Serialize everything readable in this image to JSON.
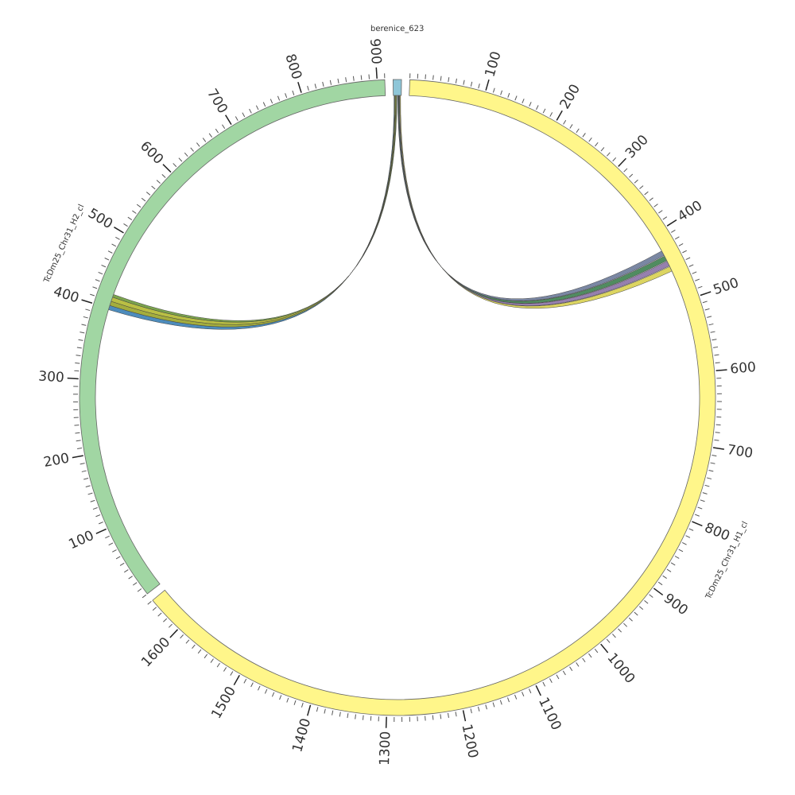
{
  "chart_data": {
    "type": "circos",
    "segments": [
      {
        "name": "berenice_623",
        "length": 11,
        "color": "#8ec6d8",
        "ticks": []
      },
      {
        "name": "TcDm25_Chr31_H1_cl",
        "length": 1650,
        "color": "#fff68a",
        "ticks": [
          100,
          200,
          300,
          400,
          500,
          600,
          700,
          800,
          900,
          1000,
          1100,
          1200,
          1300,
          1400,
          1500,
          1600
        ]
      },
      {
        "name": "TcDm25_Chr31_H2_cl",
        "length": 910,
        "color": "#a1d6a3",
        "ticks": [
          100,
          200,
          300,
          400,
          500,
          600,
          700,
          800,
          900
        ]
      }
    ],
    "minor_tick_step": 10,
    "links": [
      {
        "source": 0,
        "source_start": 6,
        "source_end": 7,
        "target": 1,
        "target_start": 425,
        "target_end": 432,
        "color": "#6b7a99"
      },
      {
        "source": 0,
        "source_start": 7,
        "source_end": 8,
        "target": 1,
        "target_start": 433,
        "target_end": 440,
        "color": "#3d7f4f"
      },
      {
        "source": 0,
        "source_start": 8,
        "source_end": 9,
        "target": 1,
        "target_start": 441,
        "target_end": 448,
        "color": "#8b72a6"
      },
      {
        "source": 0,
        "source_start": 9,
        "source_end": 10,
        "target": 1,
        "target_start": 449,
        "target_end": 456,
        "color": "#d8d050"
      },
      {
        "source": 0,
        "source_start": 1,
        "source_end": 2,
        "target": 2,
        "target_start": 398,
        "target_end": 404,
        "color": "#3a80b5"
      },
      {
        "source": 0,
        "source_start": 2,
        "source_end": 3,
        "target": 2,
        "target_start": 404,
        "target_end": 410,
        "color": "#9aa428"
      },
      {
        "source": 0,
        "source_start": 3,
        "source_end": 4,
        "target": 2,
        "target_start": 410,
        "target_end": 416,
        "color": "#b2b830"
      },
      {
        "source": 0,
        "source_start": 4,
        "source_end": 5,
        "target": 2,
        "target_start": 416,
        "target_end": 420,
        "color": "#6d9a3a"
      }
    ]
  }
}
